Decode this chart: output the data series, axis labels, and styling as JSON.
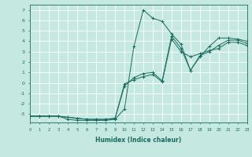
{
  "xlabel": "Humidex (Indice chaleur)",
  "xlim": [
    0,
    23
  ],
  "ylim": [
    -3.8,
    7.5
  ],
  "xticks": [
    0,
    1,
    2,
    3,
    4,
    5,
    6,
    7,
    8,
    9,
    10,
    11,
    12,
    13,
    14,
    15,
    16,
    17,
    18,
    19,
    20,
    21,
    22,
    23
  ],
  "yticks": [
    -3,
    -2,
    -1,
    0,
    1,
    2,
    3,
    4,
    5,
    6,
    7
  ],
  "line_color": "#1a6b5f",
  "bg_color": "#c5e8e0",
  "grid_color": "#ffffff",
  "lines": [
    {
      "x": [
        0,
        1,
        2,
        3,
        4,
        5,
        6,
        7,
        8,
        9,
        10,
        11,
        12,
        13,
        14,
        15,
        16,
        17,
        18,
        19,
        20,
        21,
        22,
        23
      ],
      "y": [
        -3.2,
        -3.2,
        -3.2,
        -3.2,
        -3.5,
        -3.6,
        -3.6,
        -3.6,
        -3.6,
        -3.5,
        -2.5,
        3.5,
        7.0,
        6.2,
        5.9,
        4.7,
        3.7,
        1.2,
        2.5,
        3.5,
        4.3,
        4.3,
        4.2,
        4.0
      ]
    },
    {
      "x": [
        0,
        1,
        2,
        3,
        4,
        5,
        6,
        7,
        8,
        9,
        10,
        11,
        12,
        13,
        14,
        15,
        16,
        17,
        18,
        19,
        20,
        21,
        22,
        23
      ],
      "y": [
        -3.2,
        -3.2,
        -3.2,
        -3.2,
        -3.3,
        -3.4,
        -3.5,
        -3.5,
        -3.5,
        -3.4,
        -0.3,
        0.5,
        0.9,
        1.0,
        0.2,
        4.5,
        3.3,
        1.2,
        2.6,
        3.0,
        3.6,
        4.1,
        4.1,
        3.8
      ]
    },
    {
      "x": [
        0,
        1,
        2,
        3,
        4,
        5,
        6,
        7,
        8,
        9,
        10,
        11,
        12,
        13,
        14,
        15,
        16,
        17,
        18,
        19,
        20,
        21,
        22,
        23
      ],
      "y": [
        -3.2,
        -3.2,
        -3.2,
        -3.2,
        -3.3,
        -3.4,
        -3.5,
        -3.5,
        -3.5,
        -3.4,
        -0.1,
        0.3,
        0.6,
        0.8,
        0.1,
        4.2,
        3.0,
        2.5,
        2.8,
        3.1,
        3.3,
        3.9,
        3.9,
        3.6
      ]
    }
  ]
}
